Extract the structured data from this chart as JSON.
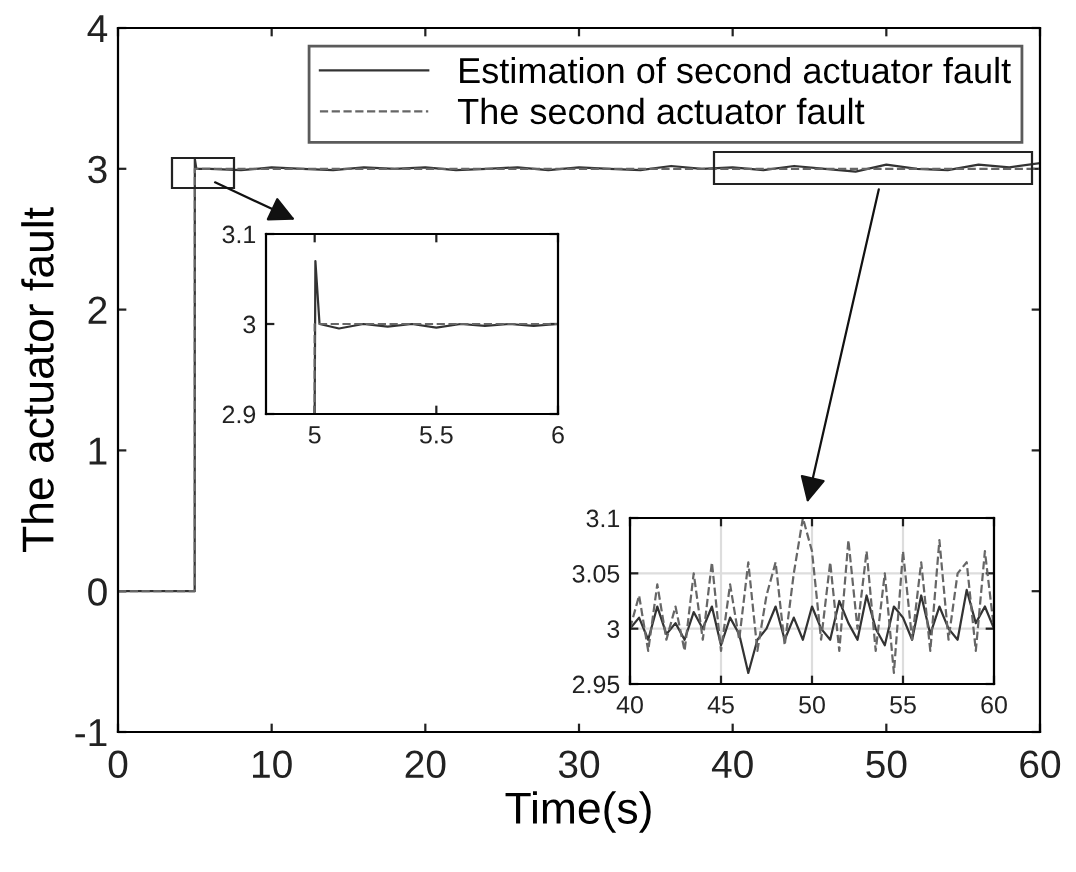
{
  "chart_data": [
    {
      "type": "line",
      "xlabel": "Time(s)",
      "ylabel": "The actuator fault",
      "xlim": [
        0,
        60
      ],
      "ylim": [
        -1,
        4
      ],
      "xticks": [
        0,
        10,
        20,
        30,
        40,
        50,
        60
      ],
      "yticks": [
        -1,
        0,
        1,
        2,
        3,
        4
      ],
      "grid": false,
      "legend": "top right",
      "series": [
        {
          "name": "Estimation of second actuator fault",
          "color": "#333333",
          "line_style": "solid",
          "x": [
            0,
            4.99,
            5,
            5.1,
            6,
            8,
            10,
            12,
            14,
            16,
            18,
            20,
            22,
            24,
            26,
            28,
            30,
            32,
            34,
            36,
            38,
            40,
            42,
            44,
            46,
            48,
            50,
            52,
            54,
            56,
            58,
            60
          ],
          "values": [
            0,
            0,
            3.07,
            3.0,
            3.0,
            2.99,
            3.01,
            3.0,
            2.99,
            3.01,
            3.0,
            3.01,
            2.99,
            3.0,
            3.01,
            2.99,
            3.01,
            3.0,
            2.99,
            3.02,
            3.0,
            3.01,
            2.99,
            3.02,
            3.0,
            2.98,
            3.03,
            3.0,
            2.99,
            3.03,
            3.01,
            3.04
          ]
        },
        {
          "name": "The second actuator fault",
          "color": "#666666",
          "line_style": "dashed",
          "x": [
            0,
            5,
            5,
            60
          ],
          "values": [
            0,
            0,
            3,
            3
          ]
        }
      ]
    },
    {
      "type": "line",
      "xlim": [
        4.8,
        6
      ],
      "ylim": [
        2.9,
        3.1
      ],
      "xticks": [
        5,
        5.5,
        6
      ],
      "yticks": [
        2.9,
        3,
        3.1
      ],
      "grid": false,
      "series": [
        {
          "color": "#333333",
          "line_style": "solid",
          "x": [
            5.0,
            5.003,
            5.02,
            5.1,
            5.2,
            5.3,
            5.4,
            5.5,
            5.6,
            5.7,
            5.8,
            5.9,
            6.0
          ],
          "values": [
            2.9,
            3.07,
            3.0,
            2.995,
            3.0,
            2.997,
            3.0,
            2.996,
            3.0,
            2.998,
            3.0,
            2.998,
            3.0
          ]
        },
        {
          "color": "#666666",
          "line_style": "dashed",
          "x": [
            5.0,
            5.0,
            6.0
          ],
          "values": [
            2.9,
            3.0,
            3.0
          ]
        }
      ]
    },
    {
      "type": "line",
      "xlim": [
        40,
        60
      ],
      "ylim": [
        2.95,
        3.1
      ],
      "xticks": [
        40,
        45,
        50,
        55,
        60
      ],
      "yticks": [
        2.95,
        3,
        3.05,
        3.1
      ],
      "grid": true,
      "series": [
        {
          "color": "#333333",
          "line_style": "solid",
          "x": [
            40,
            40.5,
            41,
            41.5,
            42,
            42.5,
            43,
            43.5,
            44,
            44.5,
            45,
            45.5,
            46,
            46.5,
            47,
            47.5,
            48,
            48.5,
            49,
            49.5,
            50,
            50.5,
            51,
            51.5,
            52,
            52.5,
            53,
            53.5,
            54,
            54.5,
            55,
            55.5,
            56,
            56.5,
            57,
            57.5,
            58,
            58.5,
            59,
            59.5,
            60
          ],
          "values": [
            3.0,
            3.01,
            2.99,
            3.02,
            2.995,
            3.005,
            2.99,
            3.015,
            3.0,
            3.02,
            2.985,
            3.01,
            2.995,
            2.96,
            2.99,
            3.0,
            3.02,
            2.99,
            3.01,
            2.99,
            3.02,
            3.0,
            2.99,
            3.025,
            3.005,
            2.99,
            3.03,
            3.0,
            2.985,
            3.02,
            3.01,
            2.99,
            3.03,
            2.995,
            3.02,
            3.0,
            2.99,
            3.035,
            3.005,
            3.02,
            3.0
          ]
        },
        {
          "color": "#666666",
          "line_style": "dashed",
          "x": [
            40,
            40.5,
            41,
            41.5,
            42,
            42.5,
            43,
            43.5,
            44,
            44.5,
            45,
            45.5,
            46,
            46.5,
            47,
            47.5,
            48,
            48.5,
            49,
            49.5,
            50,
            50.5,
            51,
            51.5,
            52,
            52.5,
            53,
            53.5,
            54,
            54.5,
            55,
            55.5,
            56,
            56.5,
            57,
            57.5,
            58,
            58.5,
            59,
            59.5,
            60
          ],
          "values": [
            3.0,
            3.03,
            2.98,
            3.04,
            2.99,
            3.02,
            2.98,
            3.05,
            2.99,
            3.06,
            2.98,
            3.04,
            2.99,
            3.06,
            2.98,
            3.03,
            3.06,
            2.985,
            3.05,
            3.1,
            3.07,
            2.99,
            3.06,
            2.98,
            3.08,
            3.0,
            3.07,
            2.98,
            3.05,
            2.96,
            3.07,
            2.99,
            3.06,
            2.98,
            3.08,
            2.99,
            3.05,
            3.06,
            2.98,
            3.07,
            3.0
          ]
        }
      ]
    }
  ]
}
